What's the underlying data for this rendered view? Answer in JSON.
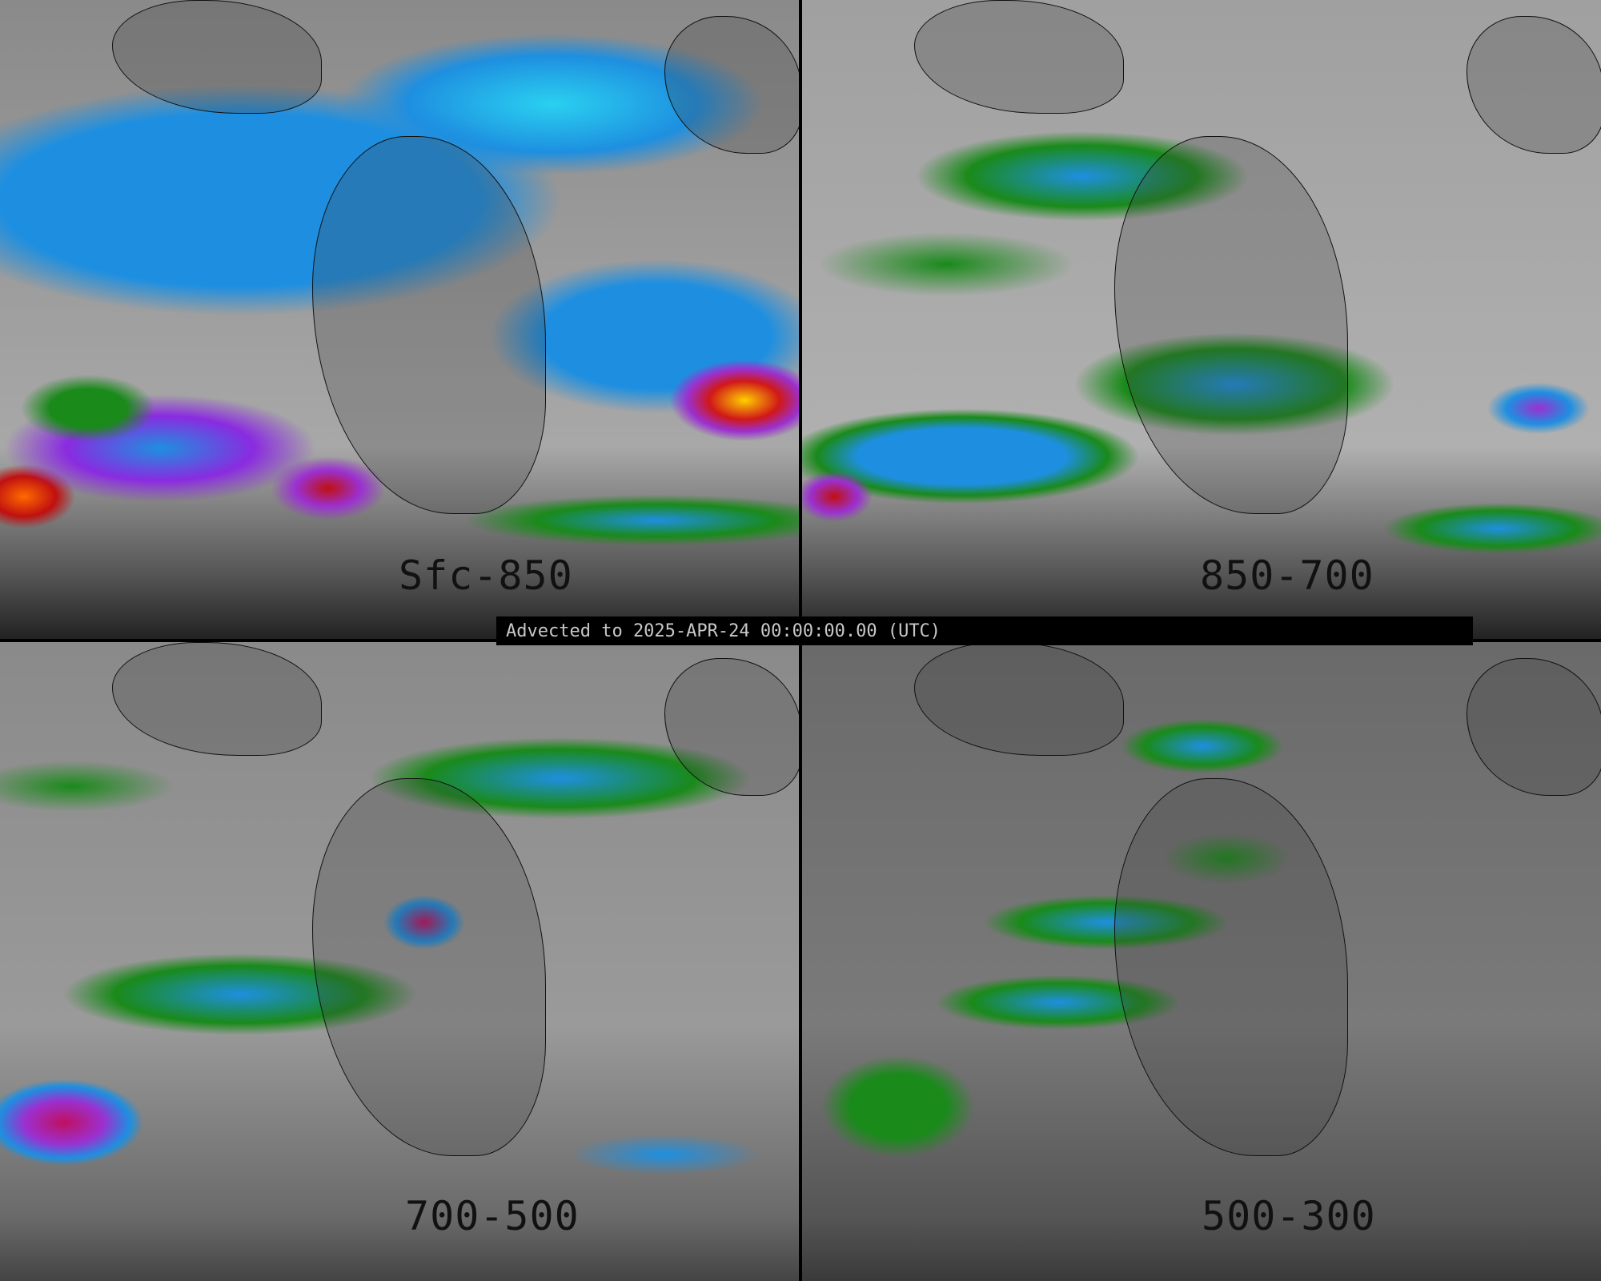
{
  "panels": [
    {
      "label": "Sfc-850"
    },
    {
      "label": "850-700"
    },
    {
      "label": "700-500"
    },
    {
      "label": "500-300"
    }
  ],
  "banner": {
    "text": "Advected to 2025-APR-24 00:00:00.00 (UTC)"
  },
  "colors": {
    "background": "#000000",
    "low_values": "#1a8a1a",
    "mid_values": "#1e8fe0",
    "high_values": "#9b30d0",
    "extreme_values": "#d01818",
    "peak_values": "#ffd000"
  }
}
